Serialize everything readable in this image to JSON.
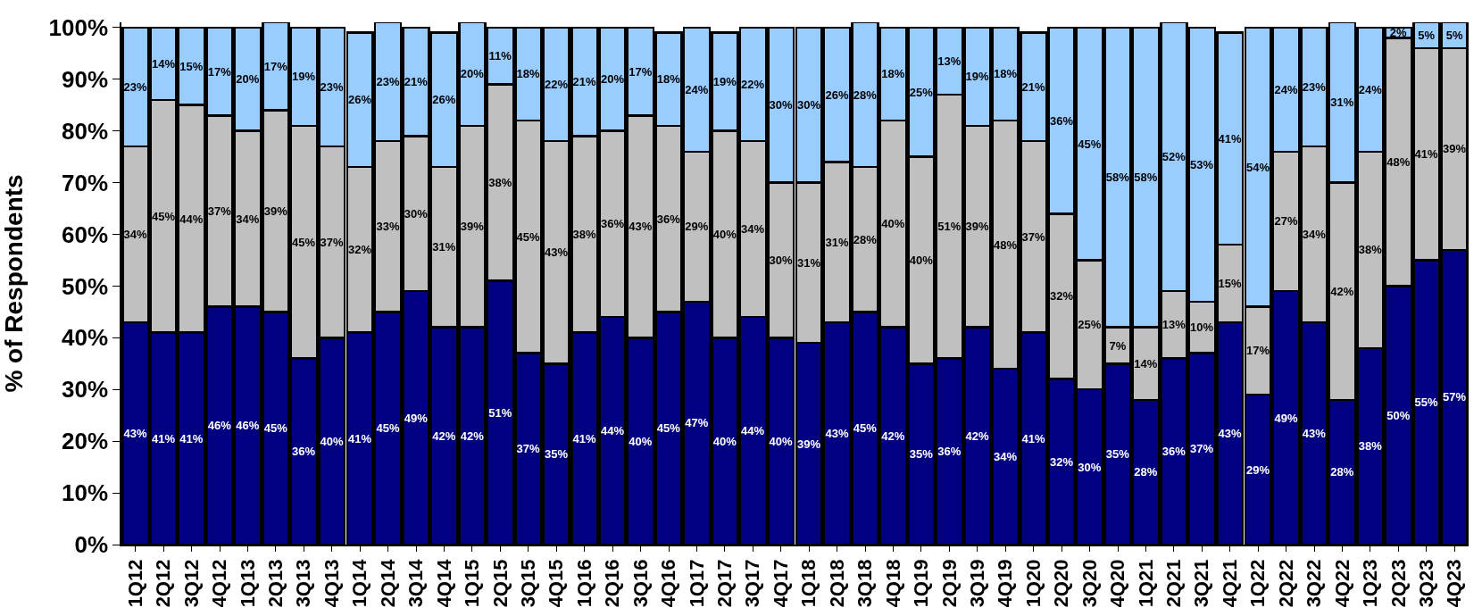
{
  "chart_data": {
    "type": "bar",
    "stacked": true,
    "ylabel": "% of Respondents",
    "categories": [
      "1Q12",
      "2Q12",
      "3Q12",
      "4Q12",
      "1Q13",
      "2Q13",
      "3Q13",
      "4Q13",
      "1Q14",
      "2Q14",
      "3Q14",
      "4Q14",
      "1Q15",
      "2Q15",
      "3Q15",
      "4Q15",
      "1Q16",
      "2Q16",
      "3Q16",
      "4Q16",
      "1Q17",
      "2Q17",
      "3Q17",
      "4Q17",
      "1Q18",
      "2Q18",
      "3Q18",
      "4Q18",
      "1Q19",
      "2Q19",
      "3Q19",
      "4Q19",
      "1Q20",
      "2Q20",
      "3Q20",
      "4Q20",
      "1Q21",
      "2Q21",
      "3Q21",
      "4Q21",
      "1Q22",
      "2Q22",
      "3Q22",
      "4Q22",
      "1Q23",
      "2Q23",
      "3Q23",
      "4Q23"
    ],
    "series": [
      {
        "color": "#000080",
        "values": [
          43,
          41,
          41,
          46,
          46,
          45,
          36,
          40,
          41,
          45,
          49,
          42,
          42,
          51,
          37,
          35,
          41,
          44,
          40,
          45,
          47,
          40,
          44,
          40,
          39,
          43,
          45,
          42,
          35,
          36,
          42,
          34,
          41,
          32,
          30,
          35,
          28,
          36,
          37,
          43,
          29,
          49,
          43,
          28,
          38,
          50,
          55,
          57
        ],
        "value_labels": [
          "43%",
          "41%",
          "41%",
          "46%",
          "46%",
          "45%",
          "36%",
          "40%",
          "41%",
          "45%",
          "49%",
          "42%",
          "42%",
          "51%",
          "37%",
          "35%",
          "41%",
          "44%",
          "40%",
          "45%",
          "47%",
          "40%",
          "44%",
          "40%",
          "39%",
          "43%",
          "45%",
          "42%",
          "35%",
          "36%",
          "42%",
          "34%",
          "41%",
          "32%",
          "30%",
          "35%",
          "28%",
          "36%",
          "37%",
          "43%",
          "29%",
          "49%",
          "43%",
          "28%",
          "38%",
          "50%",
          "55%",
          "57%"
        ]
      },
      {
        "color": "#c0c0c0",
        "values": [
          34,
          45,
          44,
          37,
          34,
          39,
          45,
          37,
          32,
          33,
          30,
          31,
          39,
          38,
          45,
          43,
          38,
          36,
          43,
          36,
          29,
          40,
          34,
          30,
          31,
          31,
          28,
          40,
          40,
          51,
          39,
          48,
          37,
          32,
          25,
          7,
          14,
          13,
          10,
          15,
          17,
          27,
          34,
          42,
          38,
          48,
          41,
          39
        ],
        "value_labels": [
          "34%",
          "45%",
          "44%",
          "37%",
          "34%",
          "39%",
          "45%",
          "37%",
          "32%",
          "33%",
          "30%",
          "31%",
          "39%",
          "38%",
          "45%",
          "43%",
          "38%",
          "36%",
          "43%",
          "36%",
          "29%",
          "40%",
          "34%",
          "30%",
          "31%",
          "31%",
          "28%",
          "40%",
          "40%",
          "51%",
          "39%",
          "48%",
          "37%",
          "32%",
          "25%",
          "7%",
          "14%",
          "13%",
          "10%",
          "15%",
          "17%",
          "27%",
          "34%",
          "42%",
          "38%",
          "48%",
          "41%",
          "39%"
        ]
      },
      {
        "color": "#99ccff",
        "values": [
          23,
          14,
          15,
          17,
          20,
          17,
          19,
          23,
          26,
          23,
          21,
          26,
          20,
          11,
          18,
          22,
          21,
          20,
          17,
          18,
          24,
          19,
          22,
          30,
          30,
          26,
          28,
          18,
          25,
          13,
          19,
          18,
          21,
          36,
          45,
          58,
          58,
          52,
          53,
          41,
          54,
          24,
          23,
          31,
          24,
          2,
          5,
          5
        ],
        "value_labels": [
          "23%",
          "14%",
          "15%",
          "17%",
          "20%",
          "17%",
          "19%",
          "23%",
          "26%",
          "23%",
          "21%",
          "26%",
          "20%",
          "11%",
          "18%",
          "22%",
          "21%",
          "20%",
          "17%",
          "18%",
          "24%",
          "19%",
          "22%",
          "30%",
          "30%",
          "26%",
          "28%",
          "18%",
          "25%",
          "13%",
          "19%",
          "18%",
          "21%",
          "36%",
          "45%",
          "58%",
          "58%",
          "52%",
          "53%",
          "41%",
          "54%",
          "24%",
          "23%",
          "31%",
          "24%",
          "2%",
          "5%",
          "5%"
        ]
      }
    ],
    "ylim": [
      0,
      101
    ],
    "yticks": [
      {
        "value": 0,
        "label": "0%"
      },
      {
        "value": 10,
        "label": "10%"
      },
      {
        "value": 20,
        "label": "20%"
      },
      {
        "value": 30,
        "label": "30%"
      },
      {
        "value": 40,
        "label": "40%"
      },
      {
        "value": 50,
        "label": "50%"
      },
      {
        "value": 60,
        "label": "60%"
      },
      {
        "value": 70,
        "label": "70%"
      },
      {
        "value": 80,
        "label": "80%"
      },
      {
        "value": 90,
        "label": "90%"
      },
      {
        "value": 100,
        "label": "100%"
      }
    ]
  }
}
